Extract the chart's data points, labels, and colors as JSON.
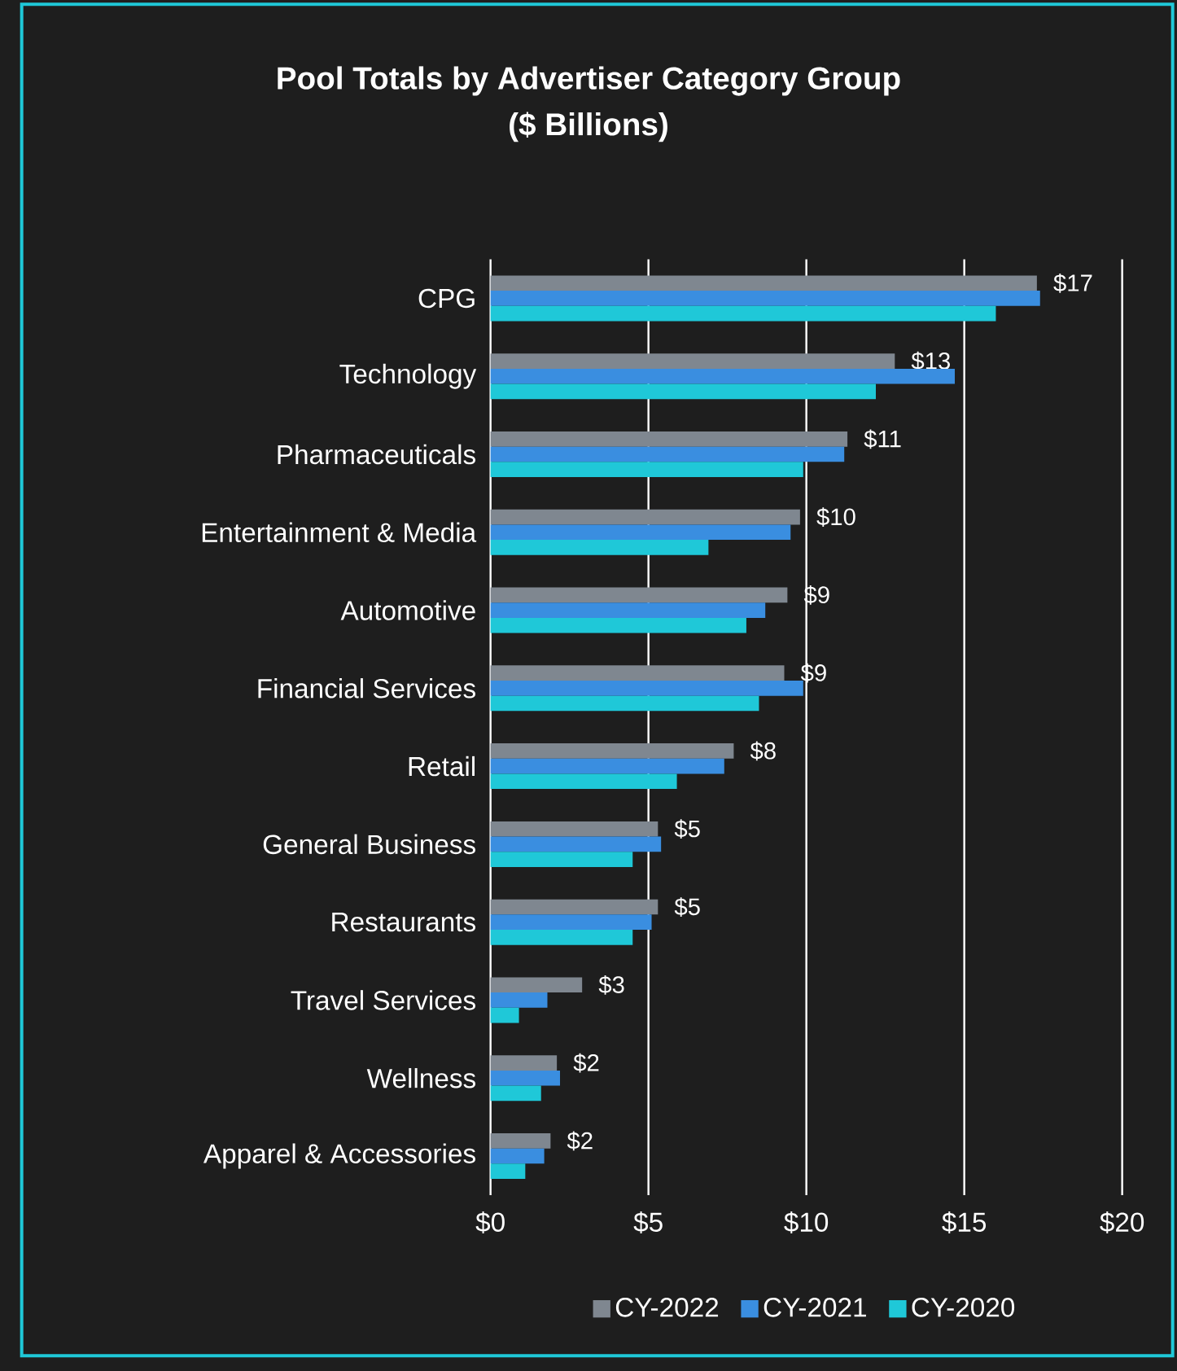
{
  "chart_data": {
    "type": "bar",
    "orientation": "horizontal",
    "title": "Pool Totals by Advertiser Category Group",
    "subtitle": "($ Billions)",
    "categories": [
      "CPG",
      "Technology",
      "Pharmaceuticals",
      "Entertainment & Media",
      "Automotive",
      "Financial Services",
      "Retail",
      "General Business",
      "Restaurants",
      "Travel Services",
      "Wellness",
      "Apparel & Accessories"
    ],
    "series": [
      {
        "name": "CY-2022",
        "color": "#7f8790",
        "values": [
          17.3,
          12.8,
          11.3,
          9.8,
          9.4,
          9.3,
          7.7,
          5.3,
          5.3,
          2.9,
          2.1,
          1.9
        ],
        "value_labels": [
          "$17",
          "$13",
          "$11",
          "$10",
          "$9",
          "$9",
          "$8",
          "$5",
          "$5",
          "$3",
          "$2",
          "$2"
        ]
      },
      {
        "name": "CY-2021",
        "color": "#3a8ee0",
        "values": [
          17.4,
          14.7,
          11.2,
          9.5,
          8.7,
          9.9,
          7.4,
          5.4,
          5.1,
          1.8,
          2.2,
          1.7
        ]
      },
      {
        "name": "CY-2020",
        "color": "#1fc8d8",
        "values": [
          16.0,
          12.2,
          9.9,
          6.9,
          8.1,
          8.5,
          5.9,
          4.5,
          4.5,
          0.9,
          1.6,
          1.1
        ]
      }
    ],
    "xlim": [
      0,
      20
    ],
    "xticks": [
      {
        "value": 0,
        "label": "$0"
      },
      {
        "value": 5,
        "label": "$5"
      },
      {
        "value": 10,
        "label": "$10"
      },
      {
        "value": 15,
        "label": "$15"
      },
      {
        "value": 20,
        "label": "$20"
      }
    ],
    "grid": "x",
    "legend": "bottom"
  }
}
